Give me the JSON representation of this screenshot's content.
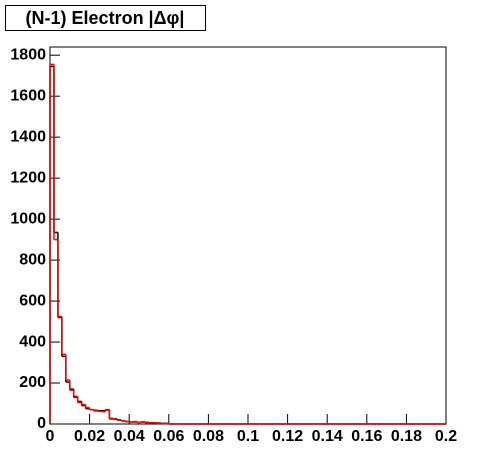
{
  "chart_data": {
    "type": "histogram",
    "title": "(N-1) Electron |Δφ|",
    "bins": [
      0,
      0.002,
      0.004,
      0.006,
      0.008,
      0.01,
      0.012,
      0.014,
      0.016,
      0.018,
      0.02,
      0.022,
      0.024,
      0.026,
      0.028,
      0.03,
      0.032,
      0.034,
      0.036,
      0.038,
      0.04,
      0.042,
      0.044,
      0.046,
      0.048,
      0.05,
      0.052,
      0.054,
      0.056,
      0.058,
      0.06,
      0.2
    ],
    "series": [
      {
        "color": "#000000",
        "values": [
          1745,
          935,
          520,
          330,
          205,
          170,
          130,
          110,
          90,
          75,
          70,
          65,
          65,
          65,
          70,
          25,
          25,
          20,
          15,
          12,
          10,
          10,
          8,
          10,
          8,
          6,
          5,
          5,
          3,
          3,
          0
        ]
      },
      {
        "color": "#ff0000",
        "values": [
          1755,
          900,
          525,
          340,
          215,
          165,
          135,
          105,
          95,
          80,
          70,
          68,
          62,
          60,
          68,
          28,
          22,
          18,
          15,
          12,
          10,
          12,
          8,
          9,
          7,
          6,
          5,
          4,
          3,
          3,
          0
        ]
      }
    ],
    "xlim": [
      0,
      0.2
    ],
    "xticks": [
      0,
      0.02,
      0.04,
      0.06,
      0.08,
      0.1,
      0.12,
      0.14,
      0.16,
      0.18,
      0.2
    ],
    "ylim": [
      0,
      1840
    ],
    "yticks": [
      0,
      200,
      400,
      600,
      800,
      1000,
      1200,
      1400,
      1600,
      1800
    ]
  }
}
